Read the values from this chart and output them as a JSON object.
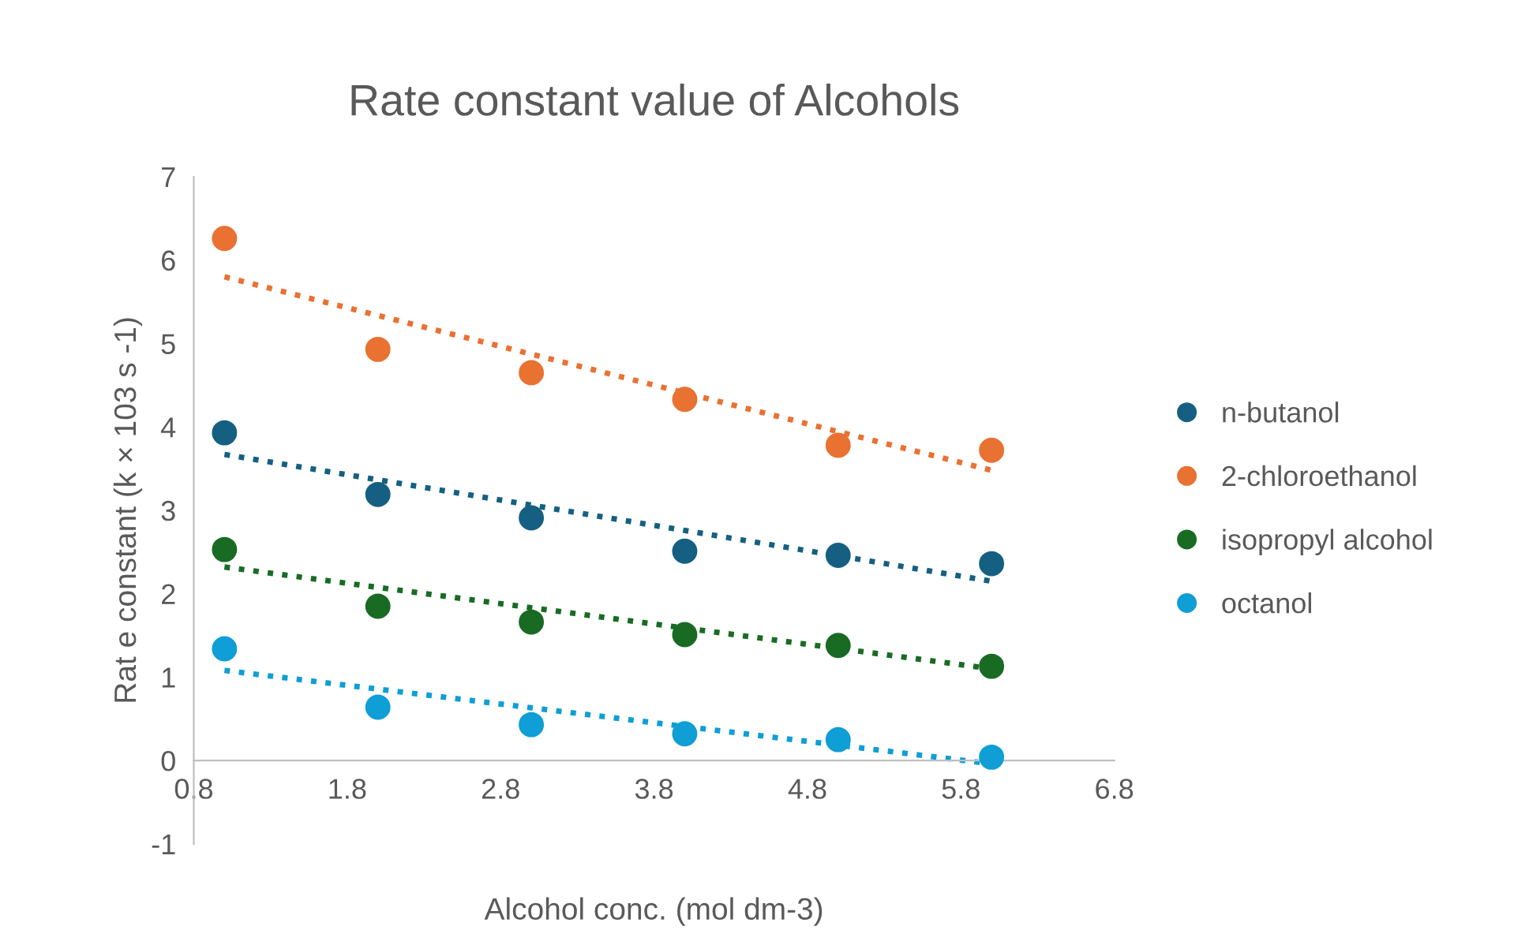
{
  "chart_data": {
    "type": "scatter",
    "title": "Rate constant value of Alcohols",
    "xlabel": "Alcohol conc. (mol dm-3)",
    "ylabel": "Rat e constant (k × 103 s -1)",
    "xlim": [
      0.8,
      6.8
    ],
    "xticks": [
      0.8,
      1.8,
      2.8,
      3.8,
      4.8,
      5.8,
      6.8
    ],
    "ylim": [
      -1,
      7
    ],
    "yticks": [
      -1,
      0,
      1,
      2,
      3,
      4,
      5,
      6,
      7
    ],
    "grid": false,
    "legend": "right",
    "marker": "circle",
    "series": [
      {
        "name": "n-butanol",
        "color": "#156082",
        "x": [
          1,
          2,
          3,
          4,
          5,
          6
        ],
        "values": [
          3.93,
          3.19,
          2.91,
          2.51,
          2.46,
          2.36
        ]
      },
      {
        "name": "2-chloroethanol",
        "color": "#e97132",
        "x": [
          1,
          2,
          3,
          4,
          5,
          6
        ],
        "values": [
          6.26,
          4.93,
          4.65,
          4.33,
          3.78,
          3.72
        ]
      },
      {
        "name": "isopropyl alcohol",
        "color": "#196b24",
        "x": [
          1,
          2,
          3,
          4,
          5,
          6
        ],
        "values": [
          2.53,
          1.85,
          1.66,
          1.51,
          1.38,
          1.13
        ]
      },
      {
        "name": "octanol",
        "color": "#0f9ed5",
        "x": [
          1,
          2,
          3,
          4,
          5,
          6
        ],
        "values": [
          1.34,
          0.64,
          0.43,
          0.32,
          0.25,
          0.04
        ]
      },
      {
        "type": "line",
        "line_style": "dotted",
        "marker": "none",
        "color": "#156082",
        "x": [
          1,
          6
        ],
        "values": [
          3.67,
          2.15
        ]
      },
      {
        "type": "line",
        "line_style": "dotted",
        "marker": "none",
        "color": "#e97132",
        "x": [
          1,
          6
        ],
        "values": [
          5.8,
          3.48
        ]
      },
      {
        "type": "line",
        "line_style": "dotted",
        "marker": "none",
        "color": "#196b24",
        "x": [
          1,
          6
        ],
        "values": [
          2.32,
          1.1
        ]
      },
      {
        "type": "line",
        "line_style": "dotted",
        "marker": "none",
        "color": "#0f9ed5",
        "x": [
          1,
          6
        ],
        "values": [
          1.08,
          -0.04
        ]
      }
    ]
  }
}
